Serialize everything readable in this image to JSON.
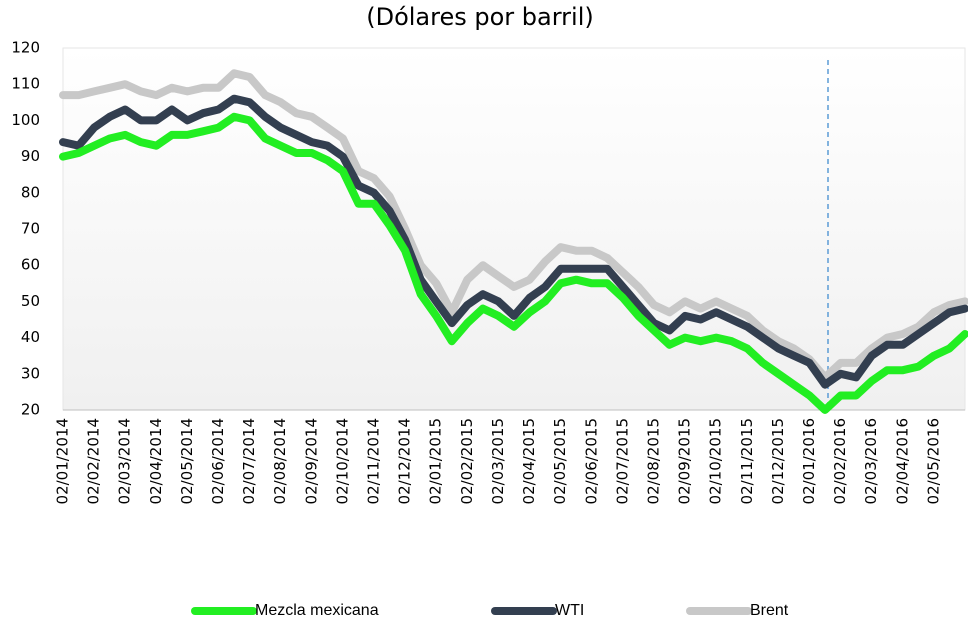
{
  "chart_data": {
    "type": "line",
    "title": "(Dólares por barril)",
    "categories": [
      "02/01/2014",
      null,
      "02/02/2014",
      null,
      "02/03/2014",
      null,
      "02/04/2014",
      null,
      "02/05/2014",
      null,
      "02/06/2014",
      null,
      "02/07/2014",
      null,
      "02/08/2014",
      null,
      "02/09/2014",
      null,
      "02/10/2014",
      null,
      "02/11/2014",
      null,
      "02/12/2014",
      null,
      "02/01/2015",
      null,
      "02/02/2015",
      null,
      "02/03/2015",
      null,
      "02/04/2015",
      null,
      "02/05/2015",
      null,
      "02/06/2015",
      null,
      "02/07/2015",
      null,
      "02/08/2015",
      null,
      "02/09/2015",
      null,
      "02/10/2015",
      null,
      "02/11/2015",
      null,
      "02/12/2015",
      null,
      "02/01/2016",
      null,
      "02/02/2016",
      null,
      "02/03/2016",
      null,
      "02/04/2016",
      null,
      "02/05/2016",
      null,
      null
    ],
    "series": [
      {
        "name": "Mezcla mexicana",
        "color": "#22ee22",
        "values": [
          90,
          91,
          93,
          95,
          96,
          94,
          93,
          96,
          96,
          97,
          98,
          101,
          100,
          95,
          93,
          91,
          91,
          89,
          86,
          77,
          77,
          71,
          64,
          52,
          46,
          39,
          44,
          48,
          46,
          43,
          47,
          50,
          55,
          56,
          55,
          55,
          51,
          46,
          42,
          38,
          40,
          39,
          40,
          39,
          37,
          33,
          30,
          27,
          24,
          20,
          24,
          24,
          28,
          31,
          31,
          32,
          35,
          37,
          41
        ]
      },
      {
        "name": "WTI",
        "color": "#333f50",
        "values": [
          94,
          93,
          98,
          101,
          103,
          100,
          100,
          103,
          100,
          102,
          103,
          106,
          105,
          101,
          98,
          96,
          94,
          93,
          90,
          82,
          80,
          75,
          67,
          56,
          50,
          44,
          49,
          52,
          50,
          46,
          51,
          54,
          59,
          59,
          59,
          59,
          54,
          49,
          44,
          42,
          46,
          45,
          47,
          45,
          43,
          40,
          37,
          35,
          33,
          27,
          30,
          29,
          35,
          38,
          38,
          41,
          44,
          47,
          48
        ]
      },
      {
        "name": "Brent",
        "color": "#c8c8c8",
        "values": [
          107,
          107,
          108,
          109,
          110,
          108,
          107,
          109,
          108,
          109,
          109,
          113,
          112,
          107,
          105,
          102,
          101,
          98,
          95,
          86,
          84,
          79,
          70,
          60,
          55,
          47,
          56,
          60,
          57,
          54,
          56,
          61,
          65,
          64,
          64,
          62,
          58,
          54,
          49,
          47,
          50,
          48,
          50,
          48,
          46,
          42,
          39,
          37,
          34,
          29,
          33,
          33,
          37,
          40,
          41,
          43,
          47,
          49,
          50
        ]
      }
    ],
    "ylim": [
      20,
      120
    ],
    "yticks": [
      20,
      30,
      40,
      50,
      60,
      70,
      80,
      90,
      100,
      110,
      120
    ],
    "grid": false
  }
}
